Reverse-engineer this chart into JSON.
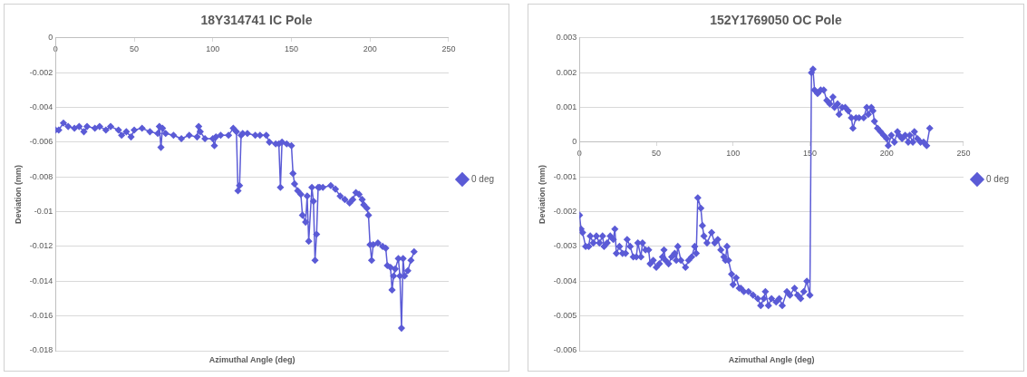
{
  "chart_data": [
    {
      "type": "line",
      "title": "18Y314741 IC Pole",
      "xlabel": "Azimuthal Angle (deg)",
      "ylabel": "Deviation (mm)",
      "x": [
        0,
        2,
        5,
        8,
        12,
        15,
        18,
        20,
        25,
        28,
        32,
        35,
        40,
        42,
        45,
        48,
        50,
        55,
        60,
        65,
        66,
        67,
        68,
        70,
        75,
        80,
        85,
        90,
        91,
        92,
        95,
        100,
        101,
        102,
        105,
        110,
        113,
        115,
        116,
        117,
        118,
        119,
        122,
        127,
        130,
        134,
        136,
        140,
        142,
        143,
        144,
        147,
        150,
        151,
        152,
        154,
        156,
        157,
        159,
        160,
        161,
        163,
        164,
        165,
        166,
        167,
        168,
        170,
        175,
        178,
        181,
        184,
        187,
        189,
        191,
        193,
        195,
        196,
        198,
        199,
        200,
        201,
        202,
        205,
        208,
        210,
        211,
        213,
        214,
        215,
        216,
        218,
        219,
        220,
        221,
        222,
        224,
        226,
        228
      ],
      "series": [
        {
          "name": "0 deg",
          "color": "#5b5bd6",
          "values": [
            -0.0053,
            -0.0053,
            -0.0049,
            -0.0051,
            -0.0052,
            -0.0051,
            -0.0054,
            -0.0051,
            -0.0052,
            -0.0051,
            -0.0053,
            -0.0051,
            -0.0053,
            -0.0056,
            -0.0054,
            -0.0057,
            -0.0053,
            -0.0052,
            -0.0054,
            -0.0055,
            -0.0051,
            -0.0063,
            -0.0052,
            -0.0055,
            -0.0056,
            -0.0058,
            -0.0056,
            -0.0057,
            -0.0051,
            -0.0054,
            -0.0058,
            -0.0058,
            -0.0062,
            -0.0057,
            -0.0056,
            -0.0056,
            -0.0052,
            -0.0054,
            -0.0088,
            -0.0085,
            -0.0056,
            -0.0055,
            -0.0055,
            -0.0056,
            -0.0056,
            -0.0056,
            -0.006,
            -0.0061,
            -0.0061,
            -0.0086,
            -0.006,
            -0.0061,
            -0.0062,
            -0.0078,
            -0.0084,
            -0.0088,
            -0.009,
            -0.0102,
            -0.0106,
            -0.0091,
            -0.0117,
            -0.0086,
            -0.0094,
            -0.0128,
            -0.0113,
            -0.0086,
            -0.0086,
            -0.0086,
            -0.0085,
            -0.0087,
            -0.0091,
            -0.0093,
            -0.0095,
            -0.0093,
            -0.0089,
            -0.009,
            -0.0093,
            -0.0096,
            -0.0098,
            -0.0102,
            -0.0119,
            -0.0128,
            -0.0119,
            -0.0118,
            -0.012,
            -0.0121,
            -0.0131,
            -0.0132,
            -0.0145,
            -0.0137,
            -0.0133,
            -0.0127,
            -0.0137,
            -0.0167,
            -0.0127,
            -0.0137,
            -0.0134,
            -0.0128,
            -0.0123
          ]
        }
      ],
      "xlim": [
        0,
        250
      ],
      "xticks": [
        0,
        50,
        100,
        150,
        200,
        250
      ],
      "ylim": [
        -0.018,
        0
      ],
      "yticks": [
        0,
        -0.002,
        -0.004,
        -0.006,
        -0.008,
        -0.01,
        -0.012,
        -0.014,
        -0.016,
        -0.018
      ],
      "grid": "y",
      "legend": "right",
      "marker": "diamond"
    },
    {
      "type": "line",
      "title": "152Y1769050 OC Pole",
      "xlabel": "Azimuthal Angle (deg)",
      "ylabel": "Deviation (mm)",
      "x": [
        0,
        1,
        2,
        4,
        6,
        7,
        9,
        11,
        13,
        15,
        16,
        18,
        20,
        22,
        23,
        24,
        26,
        28,
        30,
        31,
        33,
        35,
        37,
        38,
        40,
        41,
        43,
        45,
        46,
        48,
        50,
        52,
        54,
        55,
        56,
        58,
        60,
        62,
        63,
        64,
        66,
        69,
        71,
        73,
        75,
        76,
        77,
        79,
        80,
        81,
        83,
        86,
        88,
        90,
        92,
        94,
        95,
        96,
        97,
        99,
        100,
        102,
        104,
        105,
        107,
        110,
        113,
        116,
        118,
        120,
        121,
        123,
        125,
        128,
        130,
        132,
        135,
        137,
        140,
        142,
        144,
        146,
        148,
        150,
        151,
        152,
        153,
        155,
        157,
        159,
        161,
        163,
        165,
        166,
        168,
        169,
        171,
        173,
        175,
        177,
        178,
        180,
        182,
        185,
        187,
        188,
        190,
        191,
        192,
        194,
        196,
        198,
        200,
        201,
        203,
        205,
        207,
        208,
        210,
        212,
        214,
        215,
        217,
        218,
        220,
        222,
        224,
        226,
        228
      ],
      "series": [
        {
          "name": "0 deg",
          "color": "#5b5bd6",
          "values": [
            -0.0021,
            -0.0025,
            -0.0026,
            -0.003,
            -0.003,
            -0.0027,
            -0.0029,
            -0.0027,
            -0.0029,
            -0.0027,
            -0.003,
            -0.0029,
            -0.0027,
            -0.0028,
            -0.0025,
            -0.0032,
            -0.003,
            -0.0032,
            -0.0032,
            -0.0028,
            -0.003,
            -0.0033,
            -0.0033,
            -0.0029,
            -0.0033,
            -0.0029,
            -0.0031,
            -0.0031,
            -0.0035,
            -0.0034,
            -0.0036,
            -0.0035,
            -0.0033,
            -0.0031,
            -0.0034,
            -0.0035,
            -0.0033,
            -0.0032,
            -0.0034,
            -0.003,
            -0.0034,
            -0.0036,
            -0.0034,
            -0.0033,
            -0.003,
            -0.0032,
            -0.0016,
            -0.0019,
            -0.0024,
            -0.0027,
            -0.0029,
            -0.0026,
            -0.0029,
            -0.0028,
            -0.0031,
            -0.0033,
            -0.0034,
            -0.003,
            -0.0034,
            -0.0038,
            -0.0041,
            -0.0039,
            -0.0042,
            -0.0042,
            -0.0043,
            -0.0043,
            -0.0044,
            -0.0045,
            -0.0047,
            -0.0045,
            -0.0043,
            -0.0047,
            -0.0045,
            -0.0046,
            -0.0045,
            -0.0047,
            -0.0043,
            -0.0044,
            -0.0042,
            -0.0044,
            -0.0045,
            -0.0043,
            -0.004,
            -0.0044,
            0.002,
            0.0021,
            0.0015,
            0.0014,
            0.0015,
            0.0015,
            0.0012,
            0.0011,
            0.0013,
            0.001,
            0.0011,
            0.0008,
            0.001,
            0.001,
            0.0009,
            0.0007,
            0.0004,
            0.0007,
            0.0007,
            0.0007,
            0.001,
            0.0008,
            0.001,
            0.0009,
            0.0006,
            0.0004,
            0.0003,
            0.0002,
            0.0001,
            -0.0001,
            0.0002,
            0,
            0.0003,
            0.0002,
            0.0001,
            0.0002,
            0,
            0.0002,
            0,
            0.0003,
            0.0001,
            0,
            0,
            -0.0001,
            0.0004
          ]
        }
      ],
      "xlim": [
        0,
        250
      ],
      "xticks": [
        0,
        50,
        100,
        150,
        200,
        250
      ],
      "ylim": [
        -0.006,
        0.003
      ],
      "yticks": [
        0.003,
        0.002,
        0.001,
        0,
        -0.001,
        -0.002,
        -0.003,
        -0.004,
        -0.005,
        -0.006
      ],
      "grid": "y",
      "legend": "right",
      "marker": "diamond"
    }
  ]
}
